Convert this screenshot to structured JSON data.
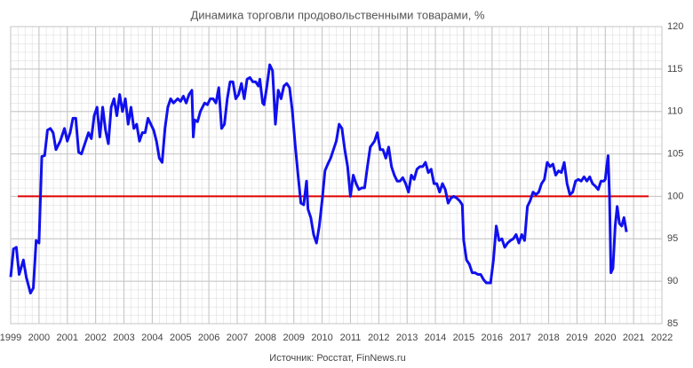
{
  "chart_data": {
    "type": "line",
    "title": "Динамика торговли продовольственными товарами, %",
    "source": "Источник: Росстат, FinNews.ru",
    "xlim": [
      1999,
      2022
    ],
    "ylim": [
      85,
      120
    ],
    "xticks": [
      1999,
      2000,
      2001,
      2002,
      2003,
      2004,
      2005,
      2006,
      2007,
      2008,
      2009,
      2010,
      2011,
      2012,
      2013,
      2014,
      2015,
      2016,
      2017,
      2018,
      2019,
      2020,
      2021,
      2022
    ],
    "yticks": [
      85,
      90,
      95,
      100,
      105,
      110,
      115,
      120
    ],
    "grid": true,
    "y_axis_side": "right",
    "reference_line": {
      "value": 100,
      "color": "#e00000"
    },
    "x": [
      1999.0,
      1999.1,
      1999.2,
      1999.3,
      1999.45,
      1999.55,
      1999.7,
      1999.8,
      1999.9,
      2000.0,
      2000.1,
      2000.2,
      2000.3,
      2000.4,
      2000.5,
      2000.6,
      2000.75,
      2000.9,
      2001.0,
      2001.1,
      2001.2,
      2001.3,
      2001.4,
      2001.5,
      2001.6,
      2001.75,
      2001.85,
      2001.95,
      2002.05,
      2002.15,
      2002.25,
      2002.35,
      2002.45,
      2002.55,
      2002.65,
      2002.75,
      2002.85,
      2002.95,
      2003.05,
      2003.15,
      2003.25,
      2003.35,
      2003.45,
      2003.55,
      2003.65,
      2003.75,
      2003.85,
      2003.95,
      2004.05,
      2004.15,
      2004.25,
      2004.35,
      2004.45,
      2004.55,
      2004.65,
      2004.75,
      2004.9,
      2005.0,
      2005.1,
      2005.2,
      2005.3,
      2005.4,
      2005.45,
      2005.5,
      2005.6,
      2005.7,
      2005.85,
      2005.95,
      2006.05,
      2006.15,
      2006.25,
      2006.35,
      2006.45,
      2006.55,
      2006.65,
      2006.75,
      2006.85,
      2006.95,
      2007.05,
      2007.15,
      2007.25,
      2007.35,
      2007.45,
      2007.55,
      2007.65,
      2007.75,
      2007.8,
      2007.9,
      2007.95,
      2008.05,
      2008.15,
      2008.25,
      2008.35,
      2008.45,
      2008.55,
      2008.65,
      2008.75,
      2008.85,
      2008.95,
      2009.05,
      2009.15,
      2009.25,
      2009.35,
      2009.45,
      2009.5,
      2009.6,
      2009.7,
      2009.8,
      2009.9,
      2010.0,
      2010.1,
      2010.2,
      2010.3,
      2010.4,
      2010.5,
      2010.6,
      2010.7,
      2010.8,
      2010.9,
      2011.0,
      2011.1,
      2011.2,
      2011.3,
      2011.4,
      2011.5,
      2011.6,
      2011.7,
      2011.85,
      2011.95,
      2012.05,
      2012.15,
      2012.25,
      2012.35,
      2012.45,
      2012.55,
      2012.65,
      2012.75,
      2012.85,
      2012.95,
      2013.05,
      2013.15,
      2013.25,
      2013.35,
      2013.45,
      2013.55,
      2013.65,
      2013.75,
      2013.85,
      2013.95,
      2014.05,
      2014.15,
      2014.25,
      2014.35,
      2014.45,
      2014.55,
      2014.65,
      2014.75,
      2014.85,
      2014.95,
      2015.0,
      2015.1,
      2015.2,
      2015.3,
      2015.4,
      2015.5,
      2015.6,
      2015.7,
      2015.8,
      2015.95,
      2016.05,
      2016.15,
      2016.25,
      2016.35,
      2016.45,
      2016.55,
      2016.65,
      2016.75,
      2016.85,
      2016.95,
      2017.05,
      2017.15,
      2017.25,
      2017.35,
      2017.45,
      2017.55,
      2017.65,
      2017.75,
      2017.85,
      2017.95,
      2018.05,
      2018.15,
      2018.25,
      2018.35,
      2018.45,
      2018.55,
      2018.65,
      2018.75,
      2018.85,
      2018.95,
      2019.05,
      2019.15,
      2019.25,
      2019.35,
      2019.45,
      2019.55,
      2019.65,
      2019.75,
      2019.85,
      2019.95,
      2020.0,
      2020.05,
      2020.1,
      2020.15,
      2020.2,
      2020.27,
      2020.35,
      2020.42,
      2020.5,
      2020.58,
      2020.66,
      2020.75
    ],
    "series": [
      {
        "color": "#1010ee",
        "values": [
          90.5,
          93.8,
          94.0,
          90.8,
          92.5,
          90.5,
          88.6,
          89.2,
          94.8,
          94.5,
          104.7,
          104.8,
          107.8,
          108.0,
          107.5,
          105.5,
          106.5,
          108.0,
          106.5,
          107.5,
          109.2,
          109.2,
          105.2,
          105.0,
          106.0,
          107.5,
          106.8,
          109.5,
          110.5,
          107.0,
          110.5,
          107.8,
          106.2,
          110.5,
          111.5,
          109.5,
          112.0,
          110.0,
          111.5,
          108.5,
          110.5,
          108.0,
          108.5,
          106.5,
          107.5,
          107.5,
          109.2,
          108.5,
          107.8,
          106.5,
          104.5,
          104.0,
          108.0,
          110.5,
          111.5,
          111.0,
          111.5,
          111.2,
          111.8,
          111.0,
          112.0,
          112.5,
          107.0,
          109.0,
          108.8,
          110.0,
          111.0,
          110.8,
          111.5,
          111.5,
          111.0,
          112.8,
          108.0,
          108.5,
          111.5,
          113.5,
          113.5,
          111.5,
          112.0,
          113.3,
          111.5,
          113.8,
          114.0,
          113.5,
          113.5,
          113.0,
          113.8,
          111.0,
          110.8,
          113.0,
          115.5,
          114.8,
          108.5,
          112.5,
          111.5,
          113.0,
          113.3,
          112.8,
          110.0,
          106.0,
          102.5,
          99.2,
          99.0,
          101.8,
          98.5,
          97.5,
          95.5,
          94.5,
          96.5,
          99.5,
          103.0,
          103.8,
          104.5,
          105.5,
          106.5,
          108.5,
          108.0,
          105.5,
          103.5,
          100.0,
          102.5,
          101.5,
          100.8,
          101.0,
          101.0,
          103.5,
          105.8,
          106.5,
          107.5,
          105.5,
          105.5,
          104.5,
          105.8,
          103.5,
          102.5,
          101.8,
          101.8,
          102.2,
          101.5,
          100.5,
          102.5,
          102.0,
          103.2,
          103.5,
          103.5,
          104.0,
          102.8,
          103.2,
          101.5,
          101.5,
          100.5,
          101.5,
          100.8,
          99.2,
          99.8,
          100.0,
          99.8,
          99.5,
          99.0,
          94.8,
          92.5,
          92.0,
          91.0,
          91.0,
          90.8,
          90.8,
          90.2,
          89.8,
          89.8,
          92.5,
          96.5,
          94.8,
          95.0,
          94.0,
          94.5,
          94.8,
          95.0,
          95.5,
          94.5,
          95.5,
          94.8,
          98.8,
          99.5,
          100.5,
          100.2,
          100.5,
          101.5,
          102.0,
          104.0,
          103.5,
          103.8,
          102.5,
          103.0,
          102.8,
          104.0,
          101.5,
          100.2,
          100.5,
          101.8,
          102.0,
          101.8,
          102.3,
          101.8,
          102.3,
          101.5,
          101.2,
          100.8,
          101.8,
          101.8,
          102.0,
          103.5,
          104.8,
          100.0,
          91.0,
          91.5,
          96.5,
          98.8,
          96.8,
          96.5,
          97.5,
          95.8
        ]
      }
    ]
  }
}
